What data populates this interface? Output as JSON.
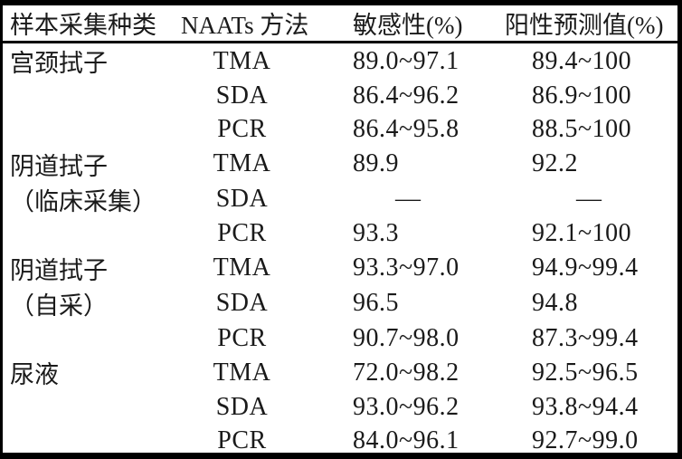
{
  "table": {
    "headers": [
      "样本采集种类",
      "NAATs 方法",
      "敏感性(%)",
      "阳性预测值(%)"
    ],
    "no_data_symbol": "—",
    "rows": [
      {
        "sample_type": "宫颈拭子",
        "method": "TMA",
        "sensitivity": "89.0~97.1",
        "ppv": "89.4~100"
      },
      {
        "sample_type": "",
        "method": "SDA",
        "sensitivity": "86.4~96.2",
        "ppv": "86.9~100"
      },
      {
        "sample_type": "",
        "method": "PCR",
        "sensitivity": "86.4~95.8",
        "ppv": "88.5~100"
      },
      {
        "sample_type": "阴道拭子",
        "method": "TMA",
        "sensitivity": "89.9",
        "ppv": "92.2"
      },
      {
        "sample_type": "（临床采集）",
        "method": "SDA",
        "sensitivity": "—",
        "ppv": "—"
      },
      {
        "sample_type": "",
        "method": "PCR",
        "sensitivity": "93.3",
        "ppv": "92.1~100"
      },
      {
        "sample_type": "阴道拭子",
        "method": "TMA",
        "sensitivity": "93.3~97.0",
        "ppv": "94.9~99.4"
      },
      {
        "sample_type": "（自采）",
        "method": "SDA",
        "sensitivity": "96.5",
        "ppv": "94.8"
      },
      {
        "sample_type": "",
        "method": "PCR",
        "sensitivity": "90.7~98.0",
        "ppv": "87.3~99.4"
      },
      {
        "sample_type": "尿液",
        "method": "TMA",
        "sensitivity": "72.0~98.2",
        "ppv": "92.5~96.5"
      },
      {
        "sample_type": "",
        "method": "SDA",
        "sensitivity": "93.0~96.2",
        "ppv": "93.8~94.4"
      },
      {
        "sample_type": "",
        "method": "PCR",
        "sensitivity": "84.0~96.1",
        "ppv": "92.7~99.0"
      }
    ]
  },
  "colors": {
    "frame": "#000000",
    "background": "#ffffff",
    "text": "#1a1a1a",
    "rule": "#000000"
  }
}
